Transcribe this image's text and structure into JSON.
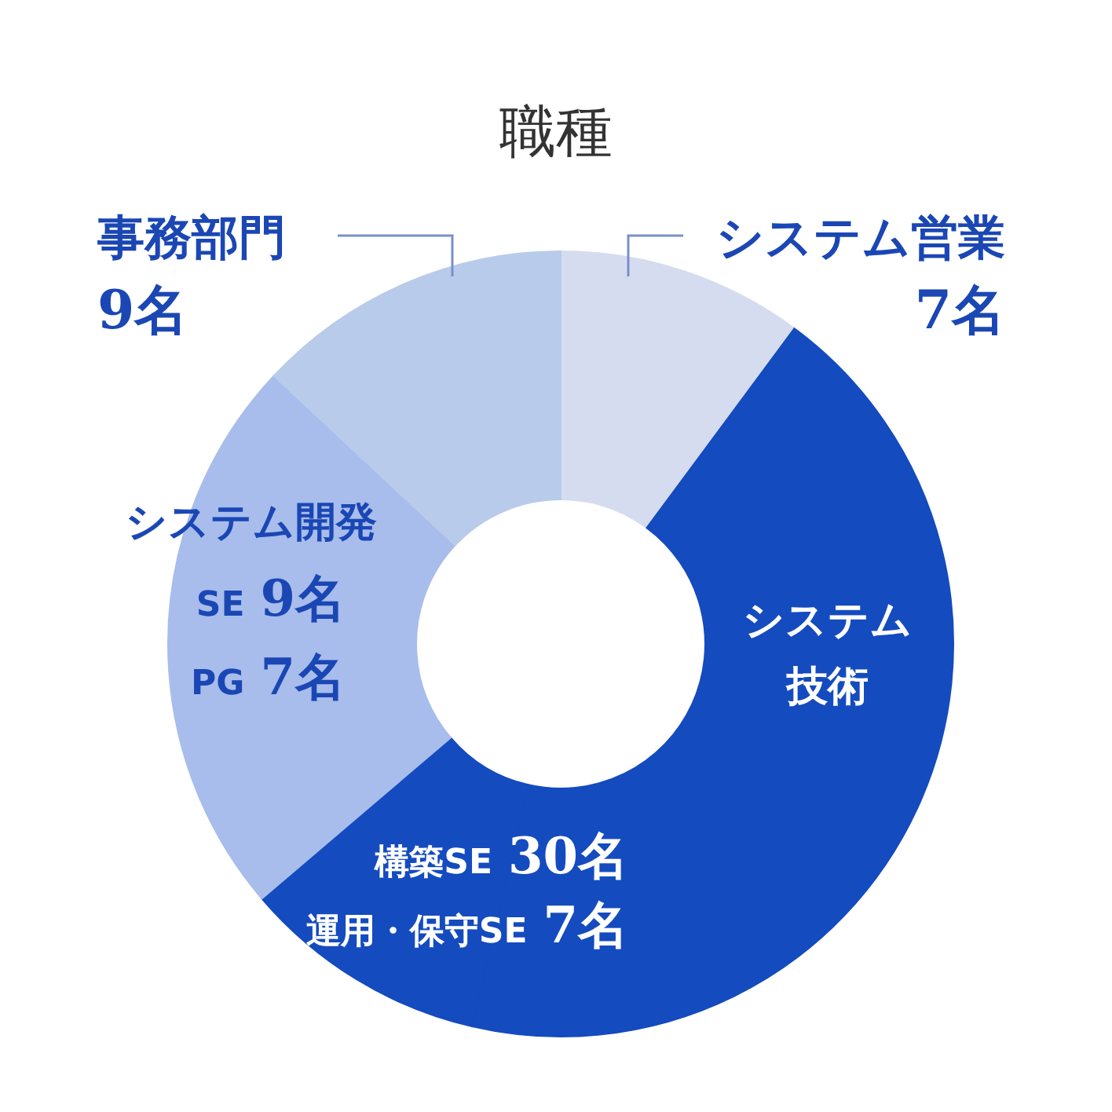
{
  "chart_data": {
    "type": "donut",
    "title": "職種",
    "categories": [
      "システム営業",
      "構築SE",
      "運用・保守SE",
      "PG",
      "SE",
      "事務部門"
    ],
    "values": [
      7,
      30,
      7,
      7,
      9,
      9
    ],
    "value_labels": [
      "7名",
      "30名",
      "7名",
      "7名",
      "9名",
      "9名"
    ],
    "colors": [
      "#d5dcf0",
      "#144bbf",
      "#144bbf",
      "#a8bdec",
      "#a8bdec",
      "#b9cbea"
    ],
    "annotations": [
      "システム技術",
      "システム開発"
    ],
    "legend": false
  }
}
